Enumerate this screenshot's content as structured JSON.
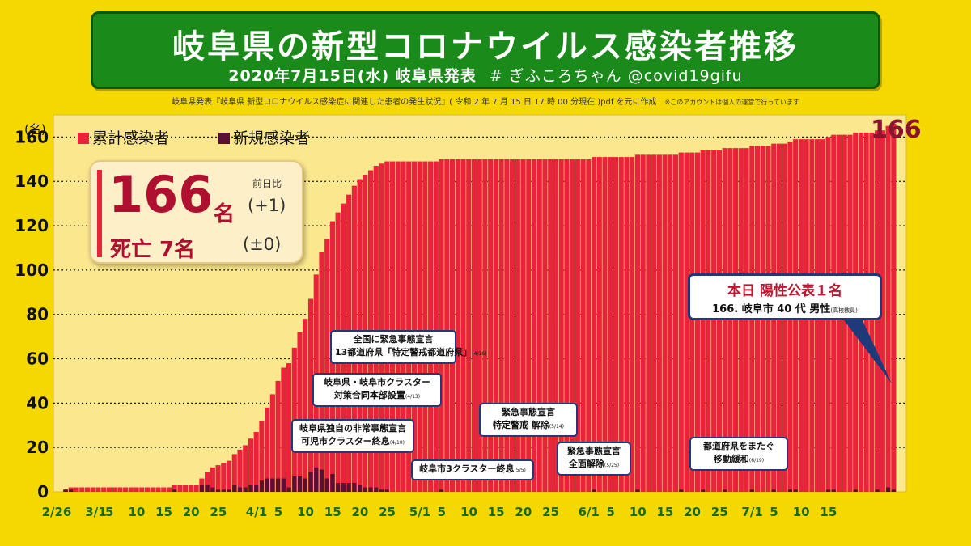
{
  "title": {
    "main": "岐阜県の新型コロナウイルス感染者推移",
    "sub": "2020年7月15日(水) 岐阜県発表",
    "tag": "# ぎふころちゃん @covid19gifu"
  },
  "source": {
    "text": "岐阜県発表『岐阜県 新型コロナウイルス感染症に関連した患者の発生状況』( 令和 2 年 7 月 15 日 17 時 00 分現在 )pdf を元に作成",
    "note": "※このアカウントは個人の運営で行っています"
  },
  "summary": {
    "total": "166",
    "unit": "名",
    "diff_label": "前日比",
    "diff": "(+1)",
    "death": "死亡 7名",
    "death_diff": "(±0)"
  },
  "today": {
    "headline": "本日 陽性公表１名",
    "detail": "166. 岐阜市 40 代 男性",
    "detail_note": "(高校教員)"
  },
  "annotations": [
    {
      "l1": "全国に緊急事態宣言",
      "l2": "13都道府県「特定警戒都道府県」",
      "note": "(4/16)"
    },
    {
      "l1": "岐阜県・岐阜市クラスター",
      "l2": "対策合同本部設置",
      "note": "(4/13)"
    },
    {
      "l1": "岐阜県独自の非常事態宣言",
      "l2": "可児市クラスター終息",
      "note": "(4/10)"
    },
    {
      "l1": "岐阜市3クラスター終息",
      "l2": "",
      "note": "(5/5)"
    },
    {
      "l1": "緊急事態宣言",
      "l2": "特定警戒 解除",
      "note": "(5/14)"
    },
    {
      "l1": "緊急事態宣言",
      "l2": "全面解除",
      "note": "(5/25)"
    },
    {
      "l1": "都道府県をまたぐ",
      "l2": "移動緩和",
      "note": "(6/19)"
    }
  ],
  "chart_data": {
    "type": "bar",
    "ylabel": "(名)",
    "ylim": [
      0,
      170
    ],
    "yticks": [
      0,
      20,
      40,
      60,
      80,
      100,
      120,
      140,
      160
    ],
    "grid": "dotted-horizontal",
    "legend": "top-left",
    "start_date": "2/26",
    "end_date": "7/15",
    "end_label": "166",
    "x_tick_labels": [
      "2/26",
      "3/1",
      "5",
      "10",
      "15",
      "20",
      "25",
      "4/1",
      "5",
      "10",
      "15",
      "20",
      "25",
      "5/1",
      "5",
      "10",
      "15",
      "20",
      "25",
      "6/1",
      "5",
      "10",
      "15",
      "20",
      "25",
      "7/1",
      "5",
      "10",
      "15"
    ],
    "x_tick_dayindex": [
      0,
      4,
      8,
      13,
      18,
      23,
      28,
      35,
      39,
      44,
      49,
      54,
      59,
      65,
      69,
      74,
      79,
      84,
      89,
      96,
      100,
      105,
      110,
      115,
      120,
      126,
      130,
      135,
      140
    ],
    "series": [
      {
        "name": "累計感染者",
        "color": "#e8233a",
        "values": [
          1,
          2,
          2,
          2,
          2,
          2,
          2,
          2,
          2,
          2,
          2,
          2,
          2,
          2,
          2,
          2,
          2,
          2,
          2,
          2,
          3,
          3,
          3,
          3,
          3,
          6,
          9,
          11,
          12,
          13,
          14,
          17,
          19,
          21,
          24,
          27,
          32,
          38,
          44,
          50,
          56,
          58,
          65,
          72,
          78,
          87,
          98,
          108,
          114,
          122,
          126,
          130,
          134,
          138,
          141,
          143,
          145,
          147,
          148,
          149,
          149,
          149,
          149,
          149,
          149,
          149,
          149,
          149,
          149,
          150,
          150,
          150,
          150,
          150,
          150,
          150,
          150,
          150,
          150,
          150,
          150,
          150,
          150,
          150,
          150,
          150,
          150,
          150,
          150,
          150,
          150,
          150,
          150,
          150,
          150,
          150,
          150,
          151,
          151,
          151,
          151,
          151,
          151,
          151,
          151,
          152,
          152,
          152,
          152,
          152,
          152,
          152,
          152,
          153,
          153,
          153,
          153,
          154,
          154,
          154,
          154,
          155,
          155,
          155,
          155,
          155,
          156,
          156,
          156,
          156,
          157,
          157,
          157,
          158,
          159,
          159,
          159,
          159,
          159,
          159,
          160,
          161,
          161,
          161,
          161,
          162,
          162,
          162,
          162,
          163,
          163,
          165,
          166
        ]
      },
      {
        "name": "新規感染者",
        "color": "#5a0f33",
        "values": [
          1,
          1,
          0,
          0,
          0,
          0,
          0,
          0,
          0,
          0,
          0,
          0,
          0,
          0,
          0,
          0,
          0,
          0,
          0,
          0,
          1,
          0,
          0,
          0,
          0,
          3,
          3,
          2,
          1,
          1,
          1,
          3,
          2,
          2,
          3,
          3,
          5,
          6,
          6,
          6,
          6,
          2,
          7,
          7,
          6,
          9,
          11,
          10,
          6,
          8,
          4,
          4,
          4,
          4,
          3,
          2,
          2,
          2,
          1,
          1,
          0,
          0,
          0,
          0,
          0,
          0,
          0,
          0,
          0,
          1,
          0,
          0,
          0,
          0,
          0,
          0,
          0,
          0,
          0,
          0,
          0,
          0,
          0,
          0,
          0,
          0,
          0,
          0,
          0,
          0,
          0,
          0,
          0,
          0,
          0,
          0,
          0,
          1,
          0,
          0,
          0,
          0,
          0,
          0,
          0,
          1,
          0,
          0,
          0,
          0,
          0,
          0,
          0,
          1,
          0,
          0,
          0,
          1,
          0,
          0,
          0,
          1,
          0,
          0,
          0,
          0,
          1,
          0,
          0,
          0,
          1,
          0,
          0,
          1,
          1,
          0,
          0,
          0,
          0,
          0,
          1,
          1,
          0,
          0,
          0,
          1,
          0,
          0,
          0,
          1,
          0,
          2,
          1
        ]
      }
    ]
  }
}
